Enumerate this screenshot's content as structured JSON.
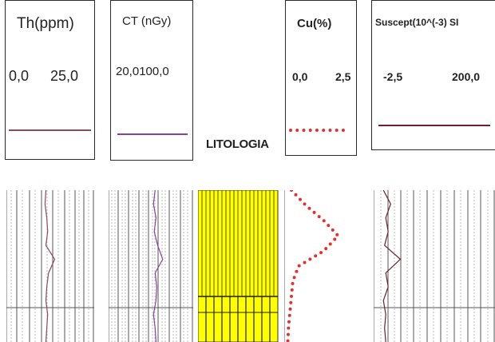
{
  "headers": {
    "th": {
      "title": "Th(ppm)",
      "min": "0,0",
      "max": "25,0"
    },
    "ct": {
      "title": "CT (nGy)",
      "range": "20,0100,0"
    },
    "cu": {
      "title": "Cu(%)",
      "min": "0,0",
      "max": "2,5"
    },
    "sus": {
      "title": "Suscept(10^(-3) SI",
      "min": "-2,5",
      "max": "200,0"
    }
  },
  "lithology_label": "LITOLOGIA",
  "colors": {
    "th_curve": "#8b4a5a",
    "ct_curve": "#8b3fa0",
    "cu_curve": "#e03030",
    "sus_curve": "#6b1f2f",
    "lithology_fill": "#ffff00",
    "grid": "#555555",
    "grid_light": "#aaaaaa"
  },
  "curves": {
    "th": [
      0.45,
      0.44,
      0.46,
      0.47,
      0.45,
      0.55,
      0.48,
      0.46,
      0.45,
      0.47,
      0.46,
      0.45
    ],
    "ct": [
      0.55,
      0.53,
      0.56,
      0.54,
      0.58,
      0.64,
      0.55,
      0.57,
      0.56,
      0.53,
      0.55,
      0.56
    ],
    "cu": [
      0.1,
      0.3,
      0.55,
      0.75,
      0.55,
      0.2,
      0.12,
      0.1,
      0.08,
      0.06,
      0.05
    ],
    "sus": [
      0.08,
      0.14,
      0.1,
      0.12,
      0.09,
      0.22,
      0.1,
      0.12,
      0.08,
      0.1,
      0.09,
      0.1
    ]
  }
}
